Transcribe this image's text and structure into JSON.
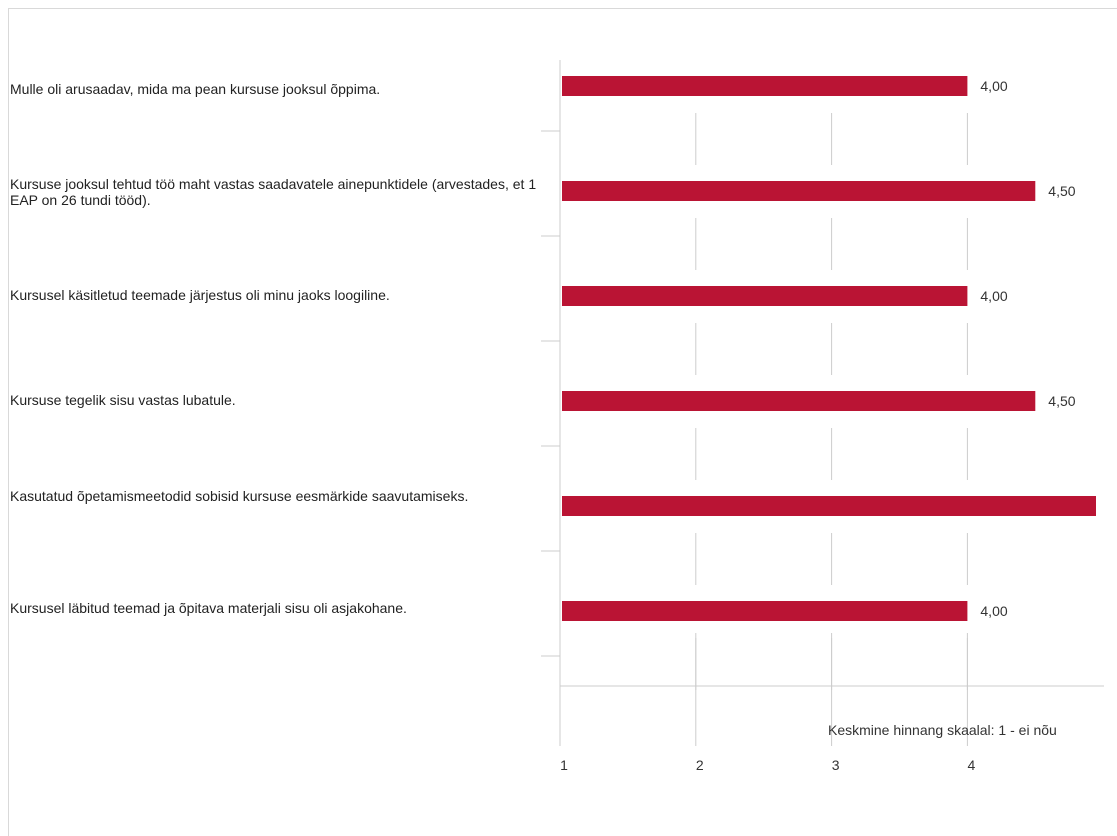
{
  "colors": {
    "bar": "#ba1434",
    "grid": "#cccccc",
    "text": "#333333"
  },
  "chart_data": {
    "type": "bar",
    "orientation": "horizontal",
    "categories": [
      "Mulle oli arusaadav, mida ma pean kursuse jooksul õppima.",
      "Kursuse jooksul tehtud töö maht vastas saadavatele ainepunktidele (arvestades, et 1 EAP on 26 tundi tööd).",
      "Kursusel käsitletud teemade järjestus oli minu jaoks loogiline.",
      "Kursuse tegelik sisu vastas lubatule.",
      "Kasutatud õpetamismeetodid sobisid kursuse eesmärkide saavutamiseks.",
      "Kursusel läbitud teemad ja õpitava materjali sisu oli asjakohane."
    ],
    "values": [
      4.0,
      4.5,
      4.0,
      4.5,
      5.0,
      4.0
    ],
    "data_labels": [
      "4,00",
      "4,50",
      "4,00",
      "4,50",
      "",
      "4,00"
    ],
    "xlim": [
      1,
      5
    ],
    "xticks": [
      1,
      2,
      3,
      4
    ],
    "xtick_labels": [
      "1",
      "2",
      "3",
      "4"
    ],
    "xlabel": "Keskmine hinnang skaalal: 1 - ei nõu",
    "grid": true
  }
}
